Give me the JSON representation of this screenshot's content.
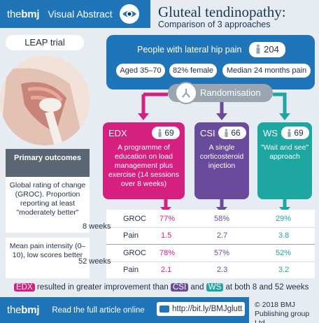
{
  "header": {
    "brand_prefix": "the",
    "brand_main": "bmj",
    "label": "Visual Abstract",
    "title": "Gluteal tendinopathy:",
    "subtitle": "Comparison of 3 approaches"
  },
  "trial": "LEAP trial",
  "population": {
    "title": "People with lateral hip pain",
    "n": "204",
    "age": "Aged 35–70",
    "female": "82% female",
    "median": "Median 24 months pain"
  },
  "randomisation": "Randomisation",
  "arms": [
    {
      "name": "EDX",
      "n": "69",
      "desc": "A programme of education on load management plus exercise (14 sessions over 8 weeks)",
      "color": "#d6207f"
    },
    {
      "name": "CSI",
      "n": "66",
      "desc": "A single corticosteroid injection",
      "color": "#6a4a9a"
    },
    {
      "name": "WS",
      "n": "69",
      "desc": "\"Wait and see\" approach",
      "color": "#1ea6a0"
    }
  ],
  "outcomes": {
    "header": "Primary outcomes",
    "groc": "Global rating of change (GROC). Proportion reporting at least \"moderately better\"",
    "pain": "Mean pain intensity (0–10), low scores better"
  },
  "results": {
    "week8": {
      "label": "8 weeks",
      "groc": [
        "77%",
        "58%",
        "29%"
      ],
      "pain": [
        "1.5",
        "2.7",
        "3.8"
      ]
    },
    "week52": {
      "label": "52 weeks",
      "groc": [
        "78%",
        "57%",
        "52%"
      ],
      "pain": [
        "2.1",
        "2.3",
        "3.2"
      ]
    },
    "groc_label": "GROC",
    "pain_label": "Pain"
  },
  "conclusion": {
    "edx": "EDX",
    "text1": "resulted in greater improvement than",
    "csi": "CSI",
    "and": "and",
    "ws": "WS",
    "text2": "at both 8 and 52 weeks"
  },
  "footer": {
    "brand_prefix": "the",
    "brand_main": "bmj",
    "read": "Read the full article online",
    "link": "http://bit.ly/BMJglutt",
    "copyright_1": "© 2018 BMJ",
    "copyright_2": "Publishing group Ltd."
  },
  "colors": {
    "bmj_blue": "#1f75b8",
    "edx": "#d6207f",
    "csi": "#6a4a9a",
    "ws": "#1ea6a0",
    "grey": "#9aa5b1"
  }
}
